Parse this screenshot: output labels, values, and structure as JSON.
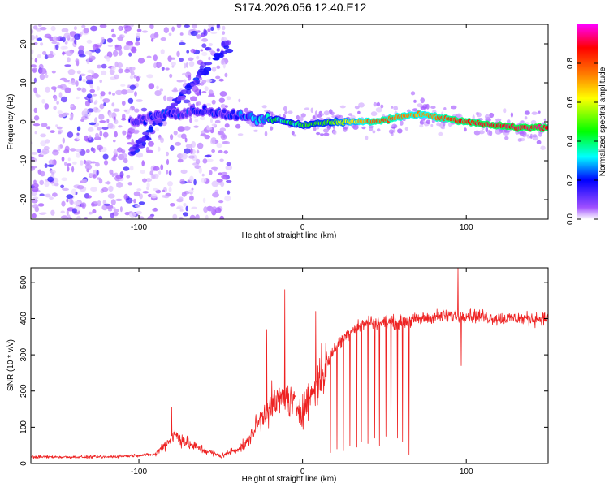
{
  "title": "S174.2026.056.12.40.E12",
  "chart_data": [
    {
      "type": "heatmap",
      "panel": "spectrogram",
      "xlabel": "Height of straight line (km)",
      "ylabel": "Frequency (Hz)",
      "xlim": [
        -166,
        150
      ],
      "ylim": [
        -25,
        25
      ],
      "xticks": [
        -100,
        0,
        100
      ],
      "yticks": [
        -20,
        -10,
        0,
        10,
        20
      ],
      "colorbar": {
        "label": "Normalized spectral amplitude",
        "range": [
          0,
          1
        ],
        "ticks": [
          0.0,
          0.2,
          0.4,
          0.6,
          0.8
        ],
        "colormap": [
          "#ffffff",
          "#a050ff",
          "#0000ff",
          "#00ffff",
          "#00ff00",
          "#ffff00",
          "#ff8000",
          "#ff0000",
          "#ff00ff"
        ]
      },
      "features": {
        "noise_region_x": [
          -166,
          -45
        ],
        "linear_trend": [
          {
            "x": -105,
            "y": -8
          },
          {
            "x": -45,
            "y": 20
          }
        ],
        "carrier_line": [
          {
            "x": -105,
            "y": 0,
            "amplitude": 0.2
          },
          {
            "x": -90,
            "y": 1.5,
            "amplitude": 0.25
          },
          {
            "x": -60,
            "y": 3,
            "amplitude": 0.25
          },
          {
            "x": -35,
            "y": 1,
            "amplitude": 0.3
          },
          {
            "x": -15,
            "y": 0.5,
            "amplitude": 0.45
          },
          {
            "x": 0,
            "y": -1,
            "amplitude": 0.5
          },
          {
            "x": 20,
            "y": 0,
            "amplitude": 0.55
          },
          {
            "x": 45,
            "y": 0,
            "amplitude": 0.85
          },
          {
            "x": 70,
            "y": 2,
            "amplitude": 0.75
          },
          {
            "x": 100,
            "y": 0,
            "amplitude": 0.9
          },
          {
            "x": 130,
            "y": -1.5,
            "amplitude": 0.95
          },
          {
            "x": 150,
            "y": -1.5,
            "amplitude": 0.95
          }
        ]
      }
    },
    {
      "type": "line",
      "panel": "snr",
      "xlabel": "Height of straight line (km)",
      "ylabel": "SNR (10 * v/v)",
      "xlim": [
        -166,
        150
      ],
      "ylim": [
        0,
        540
      ],
      "xticks": [
        -100,
        0,
        100
      ],
      "yticks": [
        0,
        100,
        200,
        300,
        400,
        500
      ],
      "color": "#ee2222",
      "envelope": [
        {
          "x": -166,
          "y": 18
        },
        {
          "x": -120,
          "y": 18
        },
        {
          "x": -90,
          "y": 25
        },
        {
          "x": -78,
          "y": 80
        },
        {
          "x": -68,
          "y": 50
        },
        {
          "x": -50,
          "y": 20
        },
        {
          "x": -35,
          "y": 50
        },
        {
          "x": -22,
          "y": 150
        },
        {
          "x": -12,
          "y": 180
        },
        {
          "x": 0,
          "y": 150
        },
        {
          "x": 10,
          "y": 230
        },
        {
          "x": 20,
          "y": 320
        },
        {
          "x": 30,
          "y": 370
        },
        {
          "x": 40,
          "y": 390
        },
        {
          "x": 60,
          "y": 390
        },
        {
          "x": 80,
          "y": 405
        },
        {
          "x": 100,
          "y": 410
        },
        {
          "x": 120,
          "y": 400
        },
        {
          "x": 150,
          "y": 400
        }
      ],
      "spikes": [
        {
          "x": -80,
          "y": 155
        },
        {
          "x": -22,
          "y": 370
        },
        {
          "x": -11,
          "y": 480
        },
        {
          "x": 8,
          "y": 420
        },
        {
          "x": 95,
          "y": 540
        },
        {
          "x": 97,
          "y": 270
        }
      ],
      "dropouts": [
        {
          "x": 17,
          "y": 30
        },
        {
          "x": 21,
          "y": 40
        },
        {
          "x": 25,
          "y": 35
        },
        {
          "x": 29,
          "y": 50
        },
        {
          "x": 33,
          "y": 45
        },
        {
          "x": 36,
          "y": 60
        },
        {
          "x": 40,
          "y": 55
        },
        {
          "x": 44,
          "y": 70
        },
        {
          "x": 47,
          "y": 50
        },
        {
          "x": 51,
          "y": 75
        },
        {
          "x": 54,
          "y": 60
        },
        {
          "x": 58,
          "y": 70
        },
        {
          "x": 61,
          "y": 60
        },
        {
          "x": 65,
          "y": 25
        }
      ]
    }
  ]
}
